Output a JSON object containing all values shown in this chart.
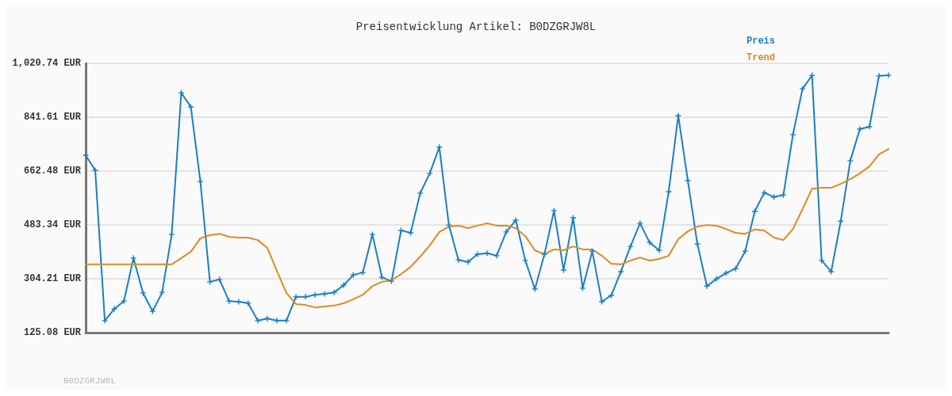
{
  "chart_data": {
    "type": "line",
    "title": "Preisentwicklung Artikel: B0DZGRJW8L",
    "annotations": [
      "B0DZGRJW8L"
    ],
    "categories": [
      null,
      null,
      null,
      null,
      null,
      null,
      null,
      null,
      null,
      null,
      null,
      null,
      null,
      null,
      null,
      null,
      null,
      null,
      null,
      null,
      null,
      null,
      null,
      null,
      null,
      null,
      null,
      null,
      null,
      null,
      null,
      null,
      null,
      null,
      null,
      null,
      null,
      null,
      null,
      null,
      null,
      null,
      null,
      null,
      null,
      null,
      null,
      null,
      null,
      null,
      null,
      null,
      null,
      null,
      null,
      null,
      null,
      null,
      null,
      null,
      null,
      null,
      null,
      null,
      null,
      null,
      null,
      null,
      null,
      null,
      null,
      null,
      null,
      null,
      null,
      null,
      null,
      null,
      null,
      null,
      null,
      null,
      null,
      null,
      null
    ],
    "series": [
      {
        "name": "Preis",
        "color": "#1a7fc9",
        "marker": "cross",
        "values": [
          715,
          665,
          165,
          204,
          230,
          373,
          257,
          196,
          259,
          452,
          923,
          876,
          628,
          294,
          302,
          230,
          228,
          223,
          165,
          172,
          165,
          165,
          244,
          244,
          251,
          254,
          259,
          283,
          317,
          325,
          452,
          309,
          296,
          465,
          457,
          589,
          655,
          742,
          483,
          367,
          360,
          386,
          389,
          381,
          460,
          499,
          365,
          270,
          386,
          531,
          333,
          507,
          273,
          396,
          228,
          249,
          328,
          412,
          489,
          425,
          399,
          594,
          847,
          631,
          420,
          280,
          304,
          323,
          338,
          396,
          528,
          591,
          576,
          583,
          784,
          936,
          981,
          365,
          328,
          496,
          697,
          802,
          810,
          979,
          981
        ]
      },
      {
        "name": "Trend",
        "color": "#e08a1e",
        "marker": "none",
        "values": [
          352,
          352,
          352,
          352,
          352,
          352,
          352,
          352,
          352,
          352,
          373,
          394,
          439,
          449,
          454,
          444,
          441,
          441,
          433,
          407,
          331,
          257,
          220,
          217,
          209,
          212,
          215,
          223,
          236,
          251,
          280,
          294,
          299,
          320,
          344,
          378,
          415,
          460,
          478,
          481,
          473,
          481,
          489,
          481,
          481,
          473,
          446,
          399,
          386,
          402,
          399,
          412,
          402,
          402,
          381,
          354,
          352,
          365,
          375,
          365,
          370,
          381,
          436,
          462,
          478,
          483,
          481,
          470,
          457,
          454,
          468,
          465,
          441,
          433,
          470,
          536,
          604,
          607,
          607,
          620,
          636,
          655,
          678,
          718,
          736
        ]
      }
    ],
    "ylim": [
      125.08,
      1020.74
    ],
    "yticks": [
      {
        "value": 125.08,
        "label": "125.08 EUR"
      },
      {
        "value": 304.21,
        "label": "304.21 EUR"
      },
      {
        "value": 483.34,
        "label": "483.34 EUR"
      },
      {
        "value": 662.48,
        "label": "662.48 EUR"
      },
      {
        "value": 841.61,
        "label": "841.61 EUR"
      },
      {
        "value": 1020.74,
        "label": "1,020.74 EUR"
      }
    ],
    "grid": "y",
    "legend": "top right",
    "line_style": "solid"
  }
}
